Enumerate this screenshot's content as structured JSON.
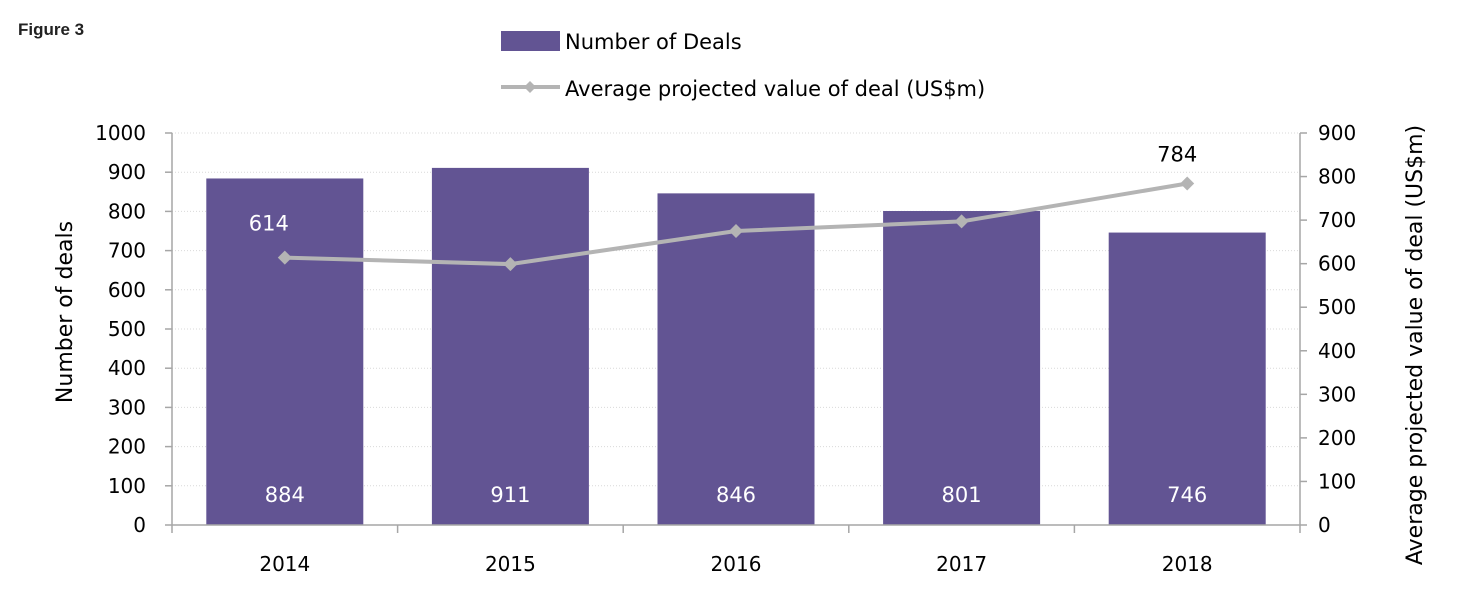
{
  "figure_label": "Figure 3",
  "chart_data": {
    "type": "bar",
    "combo": "bar+line",
    "categories": [
      "2014",
      "2015",
      "2016",
      "2017",
      "2018"
    ],
    "series": [
      {
        "name": "Number of Deals",
        "type": "bar",
        "axis": "left",
        "color": "#625493",
        "values": [
          884,
          911,
          846,
          801,
          746
        ],
        "data_labels": [
          "884",
          "911",
          "846",
          "801",
          "746"
        ]
      },
      {
        "name": "Average projected value of deal (US$m)",
        "type": "line",
        "axis": "right",
        "color": "#b4b4b4",
        "marker": "diamond",
        "values": [
          614,
          599,
          675,
          697,
          784
        ],
        "data_labels": [
          "614",
          "",
          "",
          "",
          "784"
        ]
      }
    ],
    "ylabel": "Number of deals",
    "y2label": "Average projected value of deal (US$m)",
    "ylim": [
      0,
      1000
    ],
    "y2lim": [
      0,
      900
    ],
    "yticks": [
      "0",
      "100",
      "200",
      "300",
      "400",
      "500",
      "600",
      "700",
      "800",
      "900",
      "1000"
    ],
    "y2ticks": [
      "0",
      "100",
      "200",
      "300",
      "400",
      "500",
      "600",
      "700",
      "800",
      "900"
    ],
    "grid": true,
    "legend_position": "top-center"
  }
}
